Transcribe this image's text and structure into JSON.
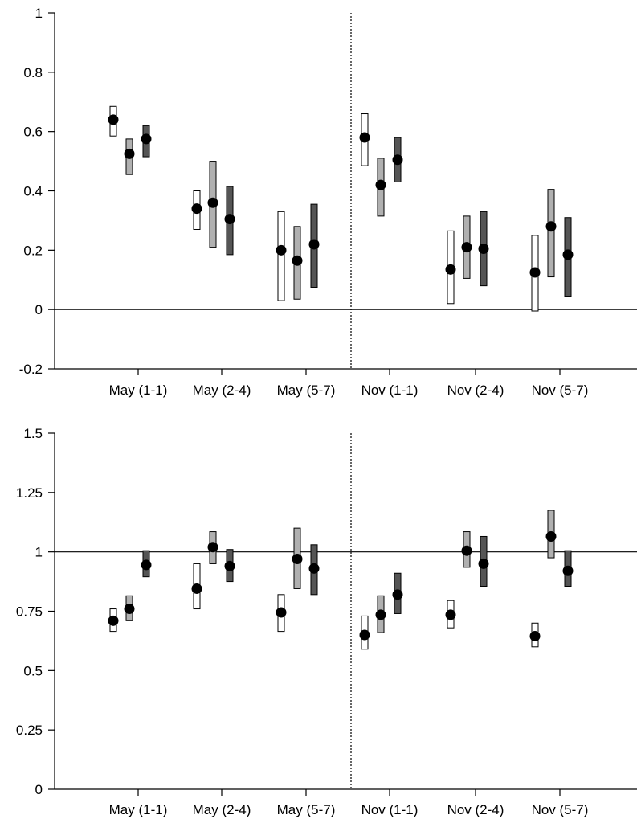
{
  "colors": {
    "series_fill": [
      "#ffffff",
      "#b0b0b0",
      "#555555"
    ],
    "bar_stroke": "#000000",
    "point": "#000000",
    "axis": "#000000",
    "divider": "#000000"
  },
  "chart_data": [
    {
      "type": "errorbar",
      "categories": [
        "May (1-1)",
        "May (2-4)",
        "May (5-7)",
        "Nov (1-1)",
        "Nov (2-4)",
        "Nov (5-7)"
      ],
      "ylim": [
        -0.2,
        1
      ],
      "yticks": [
        -0.2,
        0,
        0.2,
        0.4,
        0.6,
        0.8,
        1
      ],
      "ytick_labels": [
        "-0.2",
        "0",
        "0.2",
        "0.4",
        "0.6",
        "0.8",
        "1"
      ],
      "reference_line": 0,
      "divider_between": [
        2,
        3
      ],
      "series": [
        {
          "values": [
            0.64,
            0.34,
            0.2,
            0.58,
            0.135,
            0.125
          ],
          "low": [
            0.585,
            0.27,
            0.03,
            0.485,
            0.02,
            -0.005
          ],
          "high": [
            0.685,
            0.4,
            0.33,
            0.66,
            0.265,
            0.25
          ]
        },
        {
          "values": [
            0.525,
            0.36,
            0.165,
            0.42,
            0.21,
            0.28
          ],
          "low": [
            0.455,
            0.21,
            0.035,
            0.315,
            0.105,
            0.11
          ],
          "high": [
            0.575,
            0.5,
            0.28,
            0.51,
            0.315,
            0.405
          ]
        },
        {
          "values": [
            0.575,
            0.305,
            0.22,
            0.505,
            0.205,
            0.185
          ],
          "low": [
            0.515,
            0.185,
            0.075,
            0.43,
            0.08,
            0.045
          ],
          "high": [
            0.62,
            0.415,
            0.355,
            0.58,
            0.33,
            0.31
          ]
        }
      ]
    },
    {
      "type": "errorbar",
      "categories": [
        "May (1-1)",
        "May (2-4)",
        "May (5-7)",
        "Nov (1-1)",
        "Nov (2-4)",
        "Nov (5-7)"
      ],
      "ylim": [
        0,
        1.5
      ],
      "yticks": [
        0,
        0.25,
        0.5,
        0.75,
        1,
        1.25,
        1.5
      ],
      "ytick_labels": [
        "0",
        "0.25",
        "0.5",
        "0.75",
        "1",
        "1.25",
        "1.5"
      ],
      "reference_line": 1,
      "divider_between": [
        2,
        3
      ],
      "series": [
        {
          "values": [
            0.71,
            0.845,
            0.745,
            0.65,
            0.735,
            0.645
          ],
          "low": [
            0.665,
            0.76,
            0.665,
            0.59,
            0.68,
            0.6
          ],
          "high": [
            0.76,
            0.95,
            0.82,
            0.73,
            0.795,
            0.7
          ]
        },
        {
          "values": [
            0.76,
            1.02,
            0.97,
            0.735,
            1.005,
            1.065
          ],
          "low": [
            0.71,
            0.95,
            0.845,
            0.66,
            0.935,
            0.975
          ],
          "high": [
            0.815,
            1.085,
            1.1,
            0.815,
            1.085,
            1.175
          ]
        },
        {
          "values": [
            0.945,
            0.94,
            0.93,
            0.82,
            0.95,
            0.92
          ],
          "low": [
            0.895,
            0.875,
            0.82,
            0.74,
            0.855,
            0.855
          ],
          "high": [
            1.005,
            1.01,
            1.03,
            0.91,
            1.065,
            1.005
          ]
        }
      ]
    }
  ]
}
